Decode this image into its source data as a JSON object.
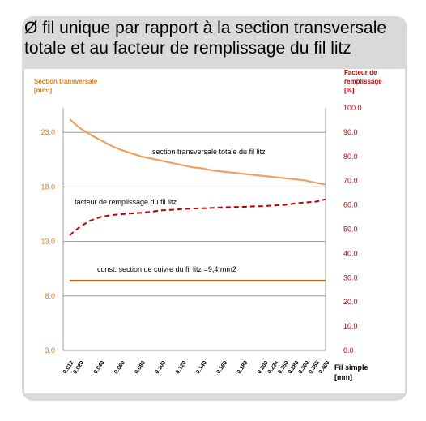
{
  "title": "Ø fil unique par rapport à la section transversale totale et au facteur de remplissage du fil litz",
  "chart_data": {
    "type": "line",
    "x": [
      "0.012",
      "0.020",
      "0.030",
      "0.040",
      "0.050",
      "0.060",
      "0.070",
      "0.080",
      "0.090",
      "0.100",
      "0.110",
      "0.120",
      "0.130",
      "0.140",
      "0.150",
      "0.160",
      "0.170",
      "0.180",
      "0.190",
      "0.200",
      "0.224",
      "0.250",
      "0.280",
      "0.300",
      "0.355",
      "0.400"
    ],
    "xtick_labels": [
      "0.012",
      "0.020",
      "0.040",
      "0.060",
      "0.080",
      "0.100",
      "0.120",
      "0.140",
      "0.160",
      "0.180",
      "0.200",
      "0.224",
      "0.250",
      "0.280",
      "0.300",
      "0.355",
      "0.400"
    ],
    "xlabel": "Fil simple",
    "xlabel_unit": "[mm]",
    "y_left": {
      "label": "Section transversale",
      "unit": "[mm²]",
      "ticks": [
        "23.0",
        "18.0",
        "13.0",
        "8.0",
        "3.0"
      ],
      "ylim": [
        3,
        25.25
      ],
      "color": "#e07b20"
    },
    "y_right": {
      "label": "Facteur de remplissage",
      "unit": "[%]",
      "ticks": [
        "100.0",
        "90.0",
        "80.0",
        "70.0",
        "60.0",
        "50.0",
        "40.0",
        "30.0",
        "20.0",
        "10.0",
        "0.0"
      ],
      "ylim": [
        0,
        100
      ],
      "color": "#c00000"
    },
    "grid": "horizontal",
    "series": [
      {
        "name": "section transversale totale du fil litz",
        "axis": "left",
        "style": "solid",
        "color": "#f0a060",
        "values": [
          24.2,
          23.4,
          22.8,
          22.3,
          21.8,
          21.4,
          21.1,
          20.8,
          20.6,
          20.4,
          20.2,
          20.0,
          19.8,
          19.7,
          19.5,
          19.4,
          19.3,
          19.2,
          19.1,
          19.0,
          18.9,
          18.8,
          18.7,
          18.6,
          18.4,
          18.2
        ]
      },
      {
        "name": "facteur de remplissage du fil litz",
        "axis": "right",
        "style": "dashed",
        "color": "#c00000",
        "values": [
          47.5,
          51.0,
          53.5,
          55.0,
          55.8,
          56.2,
          56.5,
          56.8,
          57.2,
          57.8,
          58.0,
          58.3,
          58.5,
          58.6,
          58.8,
          59.0,
          59.1,
          59.2,
          59.4,
          59.5,
          59.8,
          60.0,
          60.6,
          61.0,
          61.3,
          62.3
        ]
      },
      {
        "name": "const. section de cuivre du fil litz =9,4 mm2",
        "axis": "left",
        "style": "solid",
        "color": "#c8640a",
        "values": [
          9.4,
          9.4,
          9.4,
          9.4,
          9.4,
          9.4,
          9.4,
          9.4,
          9.4,
          9.4,
          9.4,
          9.4,
          9.4,
          9.4,
          9.4,
          9.4,
          9.4,
          9.4,
          9.4,
          9.4,
          9.4,
          9.4,
          9.4,
          9.4,
          9.4,
          9.4
        ]
      }
    ]
  }
}
